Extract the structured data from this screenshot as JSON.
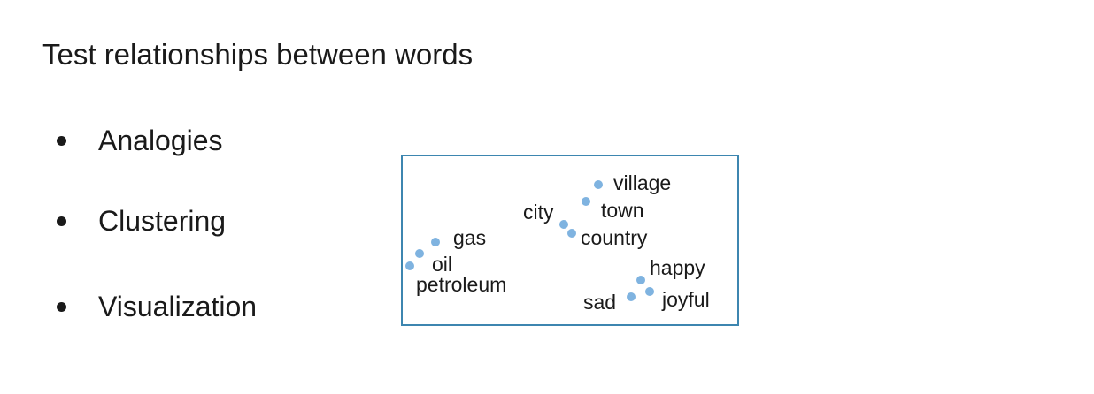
{
  "slide": {
    "title": "Test relationships between words",
    "bullets": [
      "Analogies",
      "Clustering",
      "Visualization"
    ]
  },
  "word_plot": {
    "point_color": "#7fb3e0",
    "border_color": "#3d86b0",
    "words": [
      "village",
      "city",
      "town",
      "country",
      "gas",
      "oil",
      "petroleum",
      "happy",
      "sad",
      "joyful"
    ]
  }
}
